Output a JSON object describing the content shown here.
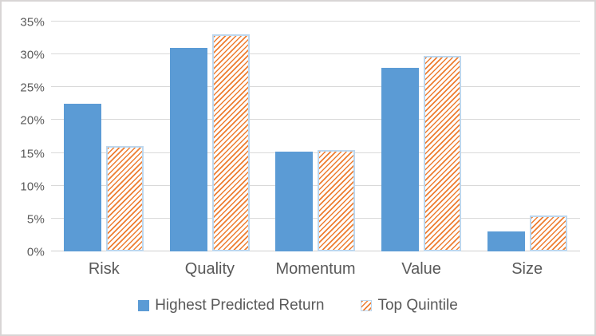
{
  "chart_data": {
    "type": "bar",
    "title": "",
    "categories": [
      "Risk",
      "Quality",
      "Momentum",
      "Value",
      "Size"
    ],
    "series": [
      {
        "name": "Highest Predicted Return",
        "style": "solid",
        "color": "#5b9bd5",
        "values": [
          22.5,
          31,
          15.2,
          28,
          3
        ]
      },
      {
        "name": "Top Quintile",
        "style": "hatch",
        "color": "#ed7d31",
        "pattern_background": "#ffffff",
        "border_color": "#bdd7ee",
        "values": [
          16,
          33,
          15.4,
          29.8,
          5.5
        ]
      }
    ],
    "ylim": [
      0,
      35
    ],
    "yticks": [
      {
        "value": 0,
        "label": "0%"
      },
      {
        "value": 5,
        "label": "5%"
      },
      {
        "value": 10,
        "label": "10%"
      },
      {
        "value": 15,
        "label": "15%"
      },
      {
        "value": 20,
        "label": "20%"
      },
      {
        "value": 25,
        "label": "25%"
      },
      {
        "value": 30,
        "label": "30%"
      },
      {
        "value": 35,
        "label": "35%"
      }
    ],
    "grid": true,
    "legend_position": "bottom",
    "colors": {
      "gridline": "#d9d9d9",
      "axis_line": "#cfcfcf",
      "tick_text": "#595959",
      "category_text": "#595959",
      "legend_text": "#595959",
      "frame_border": "#d8d5d5",
      "background": "#ffffff"
    }
  }
}
